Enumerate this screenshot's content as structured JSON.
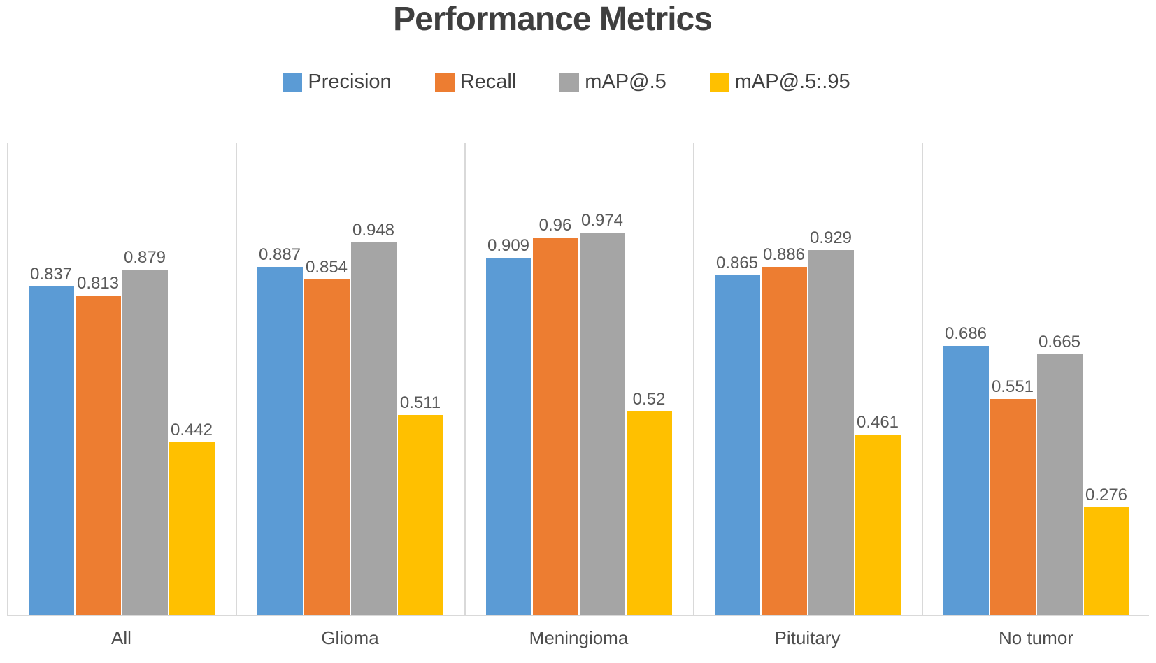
{
  "title": "Performance Metrics",
  "legend": {
    "position": "top",
    "items": [
      {
        "label": "Precision",
        "color": "#5B9BD5"
      },
      {
        "label": "Recall",
        "color": "#ED7D31"
      },
      {
        "label": "mAP@.5",
        "color": "#A5A5A5"
      },
      {
        "label": "mAP@.5:.95",
        "color": "#FFC000"
      }
    ]
  },
  "chart_data": {
    "type": "bar",
    "title": "Performance Metrics",
    "categories": [
      "All",
      "Glioma",
      "Meningioma",
      "Pituitary",
      "No tumor"
    ],
    "series": [
      {
        "name": "Precision",
        "color": "#5B9BD5",
        "values": [
          0.837,
          0.887,
          0.909,
          0.865,
          0.686
        ]
      },
      {
        "name": "Recall",
        "color": "#ED7D31",
        "values": [
          0.813,
          0.854,
          0.96,
          0.886,
          0.551
        ]
      },
      {
        "name": "mAP@.5",
        "color": "#A5A5A5",
        "values": [
          0.879,
          0.948,
          0.974,
          0.929,
          0.665
        ]
      },
      {
        "name": "mAP@.5:.95",
        "color": "#FFC000",
        "values": [
          0.442,
          0.511,
          0.52,
          0.461,
          0.276
        ]
      }
    ],
    "xlabel": "",
    "ylabel": "",
    "ylim": [
      0,
      1.2
    ],
    "y_axis_labels_visible": false,
    "grid": "vertical-category-separators",
    "data_labels": "above-bars",
    "legend_position": "top",
    "colors": {
      "separator_line": "#d9d9d9",
      "axis_line": "#d9d9d9",
      "title_text": "#3f3f3f",
      "legend_text": "#404040",
      "data_label_text": "#595959",
      "category_label_text": "#4d4d4d"
    }
  }
}
